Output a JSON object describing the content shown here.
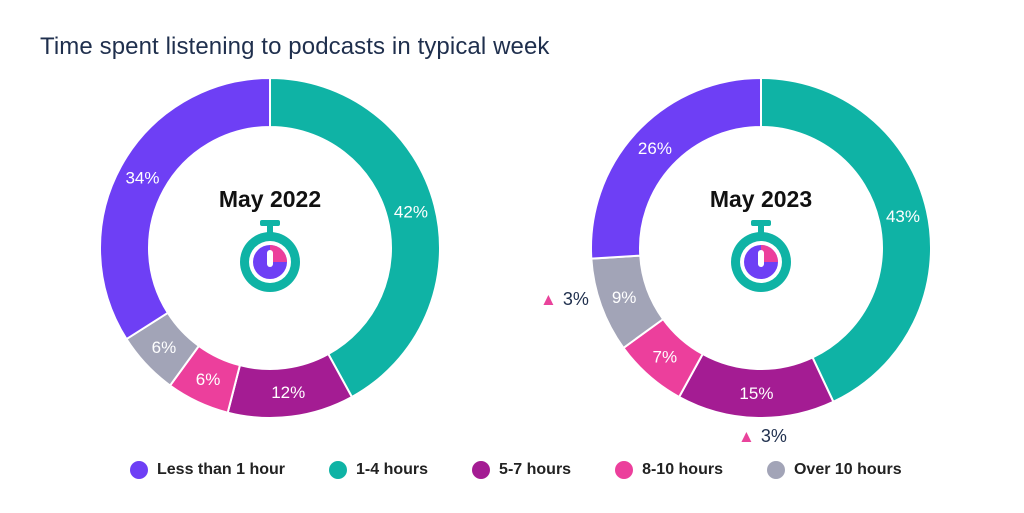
{
  "title": "Time spent listening to podcasts in typical week",
  "icons": {
    "center": "stopwatch-icon",
    "change": "triangle-up-icon"
  },
  "chart_data": [
    {
      "type": "pie",
      "title": "May 2022",
      "categories": [
        "Less than 1 hour",
        "1-4 hours",
        "5-7 hours",
        "8-10 hours",
        "Over 10 hours"
      ],
      "values": [
        34,
        42,
        12,
        6,
        6
      ],
      "labels": [
        "34%",
        "42%",
        "12%",
        "6%",
        "6%"
      ],
      "colors": [
        "#6e3ff5",
        "#0fb3a5",
        "#a41c93",
        "#ec3f9c",
        "#a2a4b7"
      ],
      "start_category": "1-4 hours"
    },
    {
      "type": "pie",
      "title": "May 2023",
      "categories": [
        "Less than 1 hour",
        "1-4 hours",
        "5-7 hours",
        "8-10 hours",
        "Over 10 hours"
      ],
      "values": [
        26,
        43,
        15,
        7,
        9
      ],
      "labels": [
        "26%",
        "43%",
        "15%",
        "7%",
        "9%"
      ],
      "colors": [
        "#6e3ff5",
        "#0fb3a5",
        "#a41c93",
        "#ec3f9c",
        "#a2a4b7"
      ],
      "start_category": "1-4 hours",
      "annotations": [
        {
          "category": "Over 10 hours",
          "text": "3%",
          "marker": "triangle-up"
        },
        {
          "category": "5-7 hours",
          "text": "3%",
          "marker": "triangle-up"
        }
      ]
    }
  ],
  "legend": {
    "placement": "bottom",
    "items": [
      {
        "label": "Less than 1 hour",
        "color": "#6e3ff5"
      },
      {
        "label": "1-4 hours",
        "color": "#0fb3a5"
      },
      {
        "label": "5-7 hours",
        "color": "#a41c93"
      },
      {
        "label": "8-10 hours",
        "color": "#ec3f9c"
      },
      {
        "label": "Over 10 hours",
        "color": "#a2a4b7"
      }
    ]
  }
}
